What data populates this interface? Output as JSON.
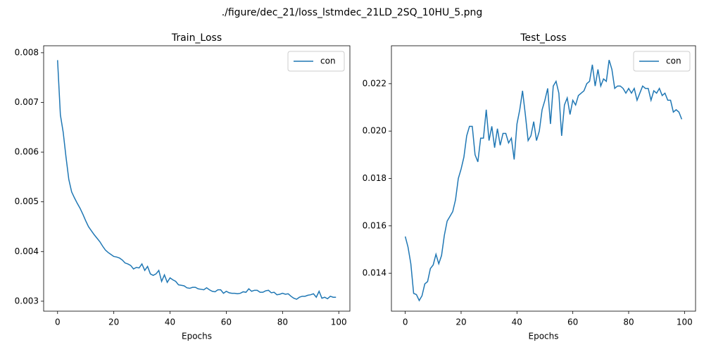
{
  "title": "./figure/dec_21/loss_lstmdec_21LD_2SQ_10HU_5.png",
  "chart_data": [
    {
      "type": "line",
      "title": "Train_Loss",
      "xlabel": "Epochs",
      "x": [
        0,
        1,
        2,
        3,
        4,
        5,
        6,
        7,
        8,
        9,
        10,
        11,
        12,
        13,
        14,
        15,
        16,
        17,
        18,
        19,
        20,
        21,
        22,
        23,
        24,
        25,
        26,
        27,
        28,
        29,
        30,
        31,
        32,
        33,
        34,
        35,
        36,
        37,
        38,
        39,
        40,
        41,
        42,
        43,
        44,
        45,
        46,
        47,
        48,
        49,
        50,
        51,
        52,
        53,
        54,
        55,
        56,
        57,
        58,
        59,
        60,
        61,
        62,
        63,
        64,
        65,
        66,
        67,
        68,
        69,
        70,
        71,
        72,
        73,
        74,
        75,
        76,
        77,
        78,
        79,
        80,
        81,
        82,
        83,
        84,
        85,
        86,
        87,
        88,
        89,
        90,
        91,
        92,
        93,
        94,
        95,
        96,
        97,
        98,
        99
      ],
      "series": [
        {
          "name": "con",
          "color": "#1f77b4",
          "values": [
            0.00785,
            0.00675,
            0.0064,
            0.0059,
            0.00545,
            0.0052,
            0.00508,
            0.00497,
            0.00487,
            0.00475,
            0.00462,
            0.0045,
            0.00442,
            0.00434,
            0.00427,
            0.0042,
            0.00411,
            0.00403,
            0.00398,
            0.00394,
            0.0039,
            0.00389,
            0.00387,
            0.00383,
            0.00377,
            0.00375,
            0.00372,
            0.00365,
            0.00368,
            0.00367,
            0.00375,
            0.00362,
            0.0037,
            0.00355,
            0.00352,
            0.00355,
            0.00362,
            0.0034,
            0.00353,
            0.00338,
            0.00347,
            0.00343,
            0.0034,
            0.00333,
            0.00332,
            0.00331,
            0.00327,
            0.00326,
            0.00328,
            0.00328,
            0.00325,
            0.00324,
            0.00323,
            0.00327,
            0.00323,
            0.0032,
            0.00319,
            0.00323,
            0.00323,
            0.00316,
            0.0032,
            0.00317,
            0.00316,
            0.00316,
            0.00315,
            0.00316,
            0.00319,
            0.00318,
            0.00325,
            0.0032,
            0.00322,
            0.00322,
            0.00318,
            0.00318,
            0.00321,
            0.00322,
            0.00317,
            0.00318,
            0.00313,
            0.00314,
            0.00316,
            0.00314,
            0.00315,
            0.0031,
            0.00306,
            0.00304,
            0.00308,
            0.0031,
            0.0031,
            0.00312,
            0.00313,
            0.00315,
            0.00308,
            0.0032,
            0.00306,
            0.00308,
            0.00305,
            0.0031,
            0.00308,
            0.00308
          ]
        }
      ],
      "xlim": [
        -4.95,
        103.95
      ],
      "xticks": [
        0,
        20,
        40,
        60,
        80,
        100
      ],
      "ylim": [
        0.0028,
        0.00814
      ],
      "yticks": [
        0.003,
        0.004,
        0.005,
        0.006,
        0.007,
        0.008
      ],
      "legend": "upper right"
    },
    {
      "type": "line",
      "title": "Test_Loss",
      "xlabel": "Epochs",
      "x": [
        0,
        1,
        2,
        3,
        4,
        5,
        6,
        7,
        8,
        9,
        10,
        11,
        12,
        13,
        14,
        15,
        16,
        17,
        18,
        19,
        20,
        21,
        22,
        23,
        24,
        25,
        26,
        27,
        28,
        29,
        30,
        31,
        32,
        33,
        34,
        35,
        36,
        37,
        38,
        39,
        40,
        41,
        42,
        43,
        44,
        45,
        46,
        47,
        48,
        49,
        50,
        51,
        52,
        53,
        54,
        55,
        56,
        57,
        58,
        59,
        60,
        61,
        62,
        63,
        64,
        65,
        66,
        67,
        68,
        69,
        70,
        71,
        72,
        73,
        74,
        75,
        76,
        77,
        78,
        79,
        80,
        81,
        82,
        83,
        84,
        85,
        86,
        87,
        88,
        89,
        90,
        91,
        92,
        93,
        94,
        95,
        96,
        97,
        98,
        99
      ],
      "series": [
        {
          "name": "con",
          "color": "#1f77b4",
          "values": [
            0.01555,
            0.0151,
            0.0144,
            0.01315,
            0.0131,
            0.01285,
            0.01305,
            0.01355,
            0.01365,
            0.0142,
            0.01435,
            0.0148,
            0.0144,
            0.01475,
            0.0156,
            0.0162,
            0.0164,
            0.0166,
            0.0171,
            0.018,
            0.0184,
            0.0189,
            0.0198,
            0.0202,
            0.0202,
            0.019,
            0.0187,
            0.0197,
            0.0197,
            0.0209,
            0.0196,
            0.0202,
            0.0193,
            0.0201,
            0.0194,
            0.0199,
            0.0199,
            0.0195,
            0.0197,
            0.0188,
            0.0203,
            0.0209,
            0.0217,
            0.0207,
            0.0196,
            0.0198,
            0.0204,
            0.0196,
            0.02,
            0.0209,
            0.0213,
            0.0218,
            0.0203,
            0.0219,
            0.0221,
            0.0216,
            0.0198,
            0.0211,
            0.0214,
            0.0207,
            0.0213,
            0.0211,
            0.0215,
            0.0216,
            0.0217,
            0.022,
            0.0221,
            0.0228,
            0.0219,
            0.0226,
            0.0219,
            0.0222,
            0.0221,
            0.023,
            0.0226,
            0.0218,
            0.0219,
            0.0219,
            0.0218,
            0.0216,
            0.0218,
            0.0216,
            0.0218,
            0.0213,
            0.0216,
            0.0219,
            0.0218,
            0.0218,
            0.0213,
            0.0217,
            0.0216,
            0.0218,
            0.0215,
            0.0216,
            0.0213,
            0.0213,
            0.0208,
            0.0209,
            0.0208,
            0.0205
          ]
        }
      ],
      "xlim": [
        -4.95,
        103.95
      ],
      "xticks": [
        0,
        20,
        40,
        60,
        80,
        100
      ],
      "ylim": [
        0.0124,
        0.0236
      ],
      "yticks": [
        0.014,
        0.016,
        0.018,
        {
          "value": 0.02,
          "label": "0.020"
        },
        0.022
      ],
      "legend": "upper right"
    }
  ]
}
